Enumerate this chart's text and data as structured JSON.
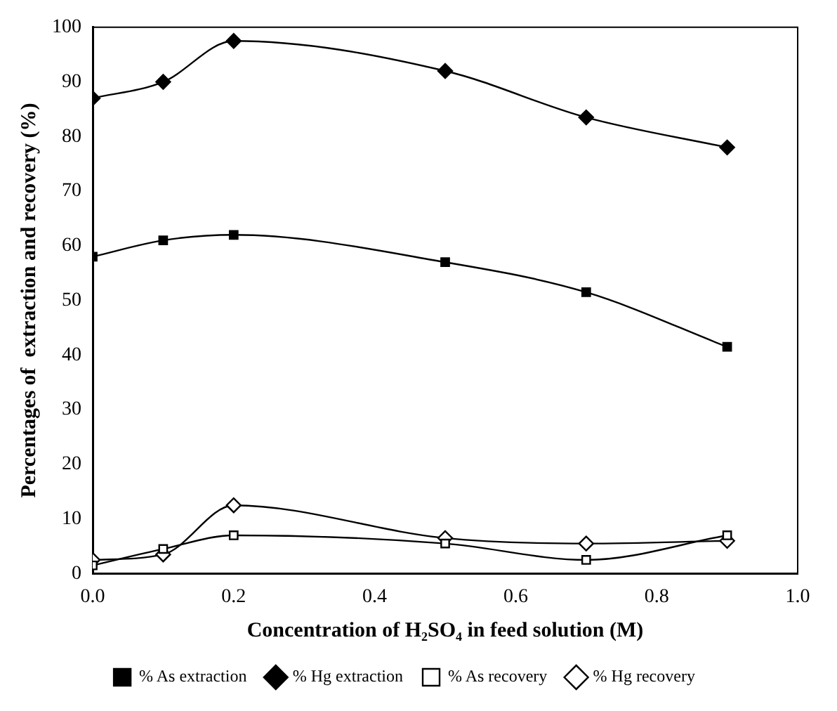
{
  "chart_data": {
    "type": "line",
    "xlabel": "Concentration of H₂SO₄ in feed solution (M)",
    "ylabel": "Percentages of  extraction and recovery (%)",
    "x": [
      0,
      0.1,
      0.2,
      0.5,
      0.7,
      0.9
    ],
    "xlim": [
      0,
      1
    ],
    "xticks": [
      {
        "value": 0,
        "label": "0.0"
      },
      0.2,
      0.4,
      0.6,
      0.8,
      {
        "value": 1,
        "label": "1.0"
      }
    ],
    "ylim": [
      0,
      100
    ],
    "yticks": [
      0,
      10,
      20,
      30,
      40,
      50,
      60,
      70,
      80,
      90,
      100
    ],
    "grid": false,
    "legend": "bottom",
    "series": [
      {
        "name": "% As extraction",
        "color": "#000000",
        "marker": "square",
        "values": [
          58,
          61,
          62,
          57,
          51.5,
          41.5
        ]
      },
      {
        "name": "% Hg extraction",
        "color": "#000000",
        "marker": "diamond",
        "values": [
          87,
          90,
          97.5,
          92,
          83.5,
          78
        ]
      },
      {
        "name": "% As recovery",
        "color": "#000000",
        "marker": "square",
        "values": [
          1.5,
          4.5,
          7,
          5.5,
          2.5,
          7
        ]
      },
      {
        "name": "% Hg recovery",
        "color": "#000000",
        "marker": "diamond",
        "values": [
          2.5,
          3.5,
          12.5,
          6.5,
          5.5,
          6
        ]
      }
    ]
  }
}
